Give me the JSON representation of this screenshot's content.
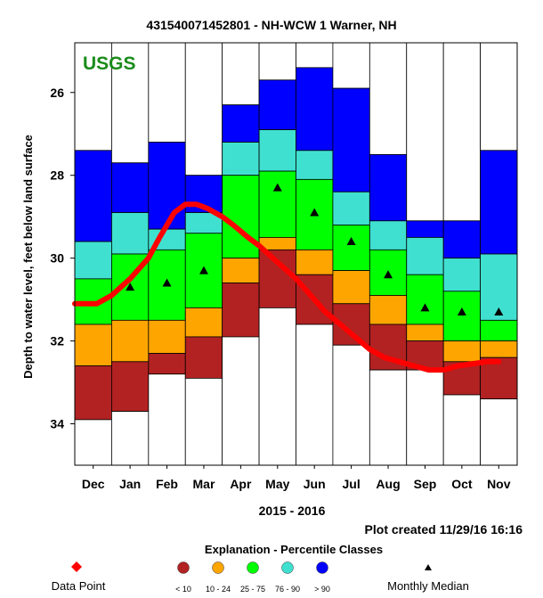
{
  "chart_data": {
    "type": "bar",
    "title": "431540071452801 - NH-WCW 1 Warner, NH",
    "watermark": "USGS",
    "ylabel": "Depth to water level, feet below land surface",
    "xlabel": "2015 - 2016",
    "ylim": [
      24.8,
      35.0
    ],
    "y_inverted": true,
    "yticks": [
      26,
      28,
      30,
      32,
      34
    ],
    "ytick_labels": [
      "26",
      "28",
      "30",
      "32",
      "34"
    ],
    "categories": [
      "Dec",
      "Jan",
      "Feb",
      "Mar",
      "Apr",
      "May",
      "Jun",
      "Jul",
      "Aug",
      "Sep",
      "Oct",
      "Nov"
    ],
    "percentile_bands": {
      "boundaries_order": [
        "min",
        "p10",
        "p25",
        "p75",
        "p90",
        "max"
      ],
      "data": [
        [
          33.9,
          32.6,
          31.6,
          30.5,
          29.6,
          27.4
        ],
        [
          33.7,
          32.5,
          31.5,
          29.9,
          28.9,
          27.7
        ],
        [
          32.8,
          32.3,
          31.5,
          29.8,
          29.3,
          27.2
        ],
        [
          32.9,
          31.9,
          31.2,
          29.4,
          28.9,
          28.0
        ],
        [
          31.9,
          30.6,
          30.0,
          28.0,
          27.2,
          26.3
        ],
        [
          31.2,
          29.8,
          29.5,
          27.9,
          26.9,
          25.7
        ],
        [
          31.6,
          30.4,
          29.8,
          28.1,
          27.4,
          25.4
        ],
        [
          32.1,
          31.1,
          30.3,
          29.2,
          28.4,
          25.9
        ],
        [
          32.7,
          31.6,
          30.9,
          29.8,
          29.1,
          27.5
        ],
        [
          32.7,
          32.0,
          31.6,
          30.4,
          29.5,
          29.1
        ],
        [
          33.3,
          32.5,
          32.0,
          30.8,
          30.0,
          29.1
        ],
        [
          33.4,
          32.4,
          32.0,
          31.5,
          29.9,
          27.4
        ]
      ]
    },
    "medians": [
      null,
      30.7,
      30.6,
      30.3,
      null,
      28.3,
      28.9,
      29.6,
      30.4,
      31.2,
      31.3,
      31.3
    ],
    "data_series": {
      "name": "Data Point",
      "x": [
        0.0,
        0.35,
        0.6,
        1.0,
        1.5,
        2.0,
        2.3,
        2.7,
        3.0,
        3.3,
        3.6,
        4.0,
        4.3,
        4.7,
        5.0,
        5.5,
        6.0,
        6.4,
        6.8,
        7.2,
        7.6,
        8.0,
        8.4,
        8.8,
        9.2,
        9.6,
        10.0,
        10.4,
        10.8,
        11.2,
        11.5
      ],
      "y": [
        31.1,
        31.1,
        31.1,
        30.9,
        30.5,
        30.0,
        29.5,
        28.9,
        28.7,
        28.7,
        28.8,
        29.0,
        29.2,
        29.5,
        29.7,
        30.1,
        30.5,
        30.9,
        31.3,
        31.6,
        31.9,
        32.2,
        32.4,
        32.5,
        32.6,
        32.7,
        32.7,
        32.6,
        32.55,
        32.5,
        32.5
      ]
    },
    "band_colors": {
      "min_p10": "#b22222",
      "p10_p25": "#ffa500",
      "p25_p75": "#00ff00",
      "p75_p90": "#40e0d0",
      "p90_max": "#0000ff"
    },
    "series_color": "#ff0000",
    "grid": false,
    "legend": {
      "title": "Explanation - Percentile Classes",
      "data_point_label": "Data Point",
      "classes": [
        {
          "label": "< 10",
          "color": "#b22222"
        },
        {
          "label": "10 - 24",
          "color": "#ffa500"
        },
        {
          "label": "25 - 75",
          "color": "#00ff00"
        },
        {
          "label": "76 - 90",
          "color": "#40e0d0"
        },
        {
          "label": "> 90",
          "color": "#0000ff"
        }
      ],
      "median_label": "Monthly Median",
      "placement": "bottom"
    },
    "footnote": "Plot created 11/29/16 16:16"
  }
}
